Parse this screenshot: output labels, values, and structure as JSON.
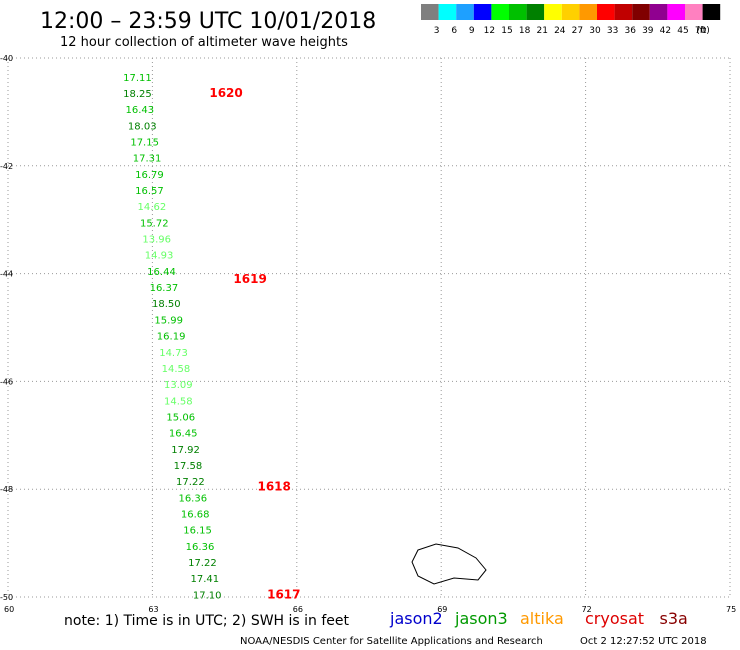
{
  "header": {
    "title": "12:00 – 23:59 UTC 10/01/2018",
    "subtitle": "12 hour collection of altimeter wave heights"
  },
  "legend": {
    "bins": [
      {
        "label": "3",
        "color": "#7f7f7f"
      },
      {
        "label": "6",
        "color": "#00ffff"
      },
      {
        "label": "9",
        "color": "#1ea0ff"
      },
      {
        "label": "12",
        "color": "#0000ff"
      },
      {
        "label": "15",
        "color": "#00ff00"
      },
      {
        "label": "18",
        "color": "#00c000"
      },
      {
        "label": "21",
        "color": "#008000"
      },
      {
        "label": "24",
        "color": "#ffff00"
      },
      {
        "label": "27",
        "color": "#ffd000"
      },
      {
        "label": "30",
        "color": "#ff9900"
      },
      {
        "label": "33",
        "color": "#ff0000"
      },
      {
        "label": "36",
        "color": "#c00000"
      },
      {
        "label": "39",
        "color": "#800000"
      },
      {
        "label": "42",
        "color": "#900090"
      },
      {
        "label": "45",
        "color": "#ff00ff"
      },
      {
        "label": "70",
        "color": "#ff80c0"
      },
      {
        "label": "",
        "color": "#000000"
      }
    ],
    "unit": "(ft)"
  },
  "footer": {
    "note": "note: 1) Time is in UTC; 2) SWH is in feet",
    "satellites": [
      {
        "name": "jason2",
        "color": "#0000cc"
      },
      {
        "name": "jason3",
        "color": "#009900"
      },
      {
        "name": "altika",
        "color": "#ff9900"
      },
      {
        "name": "cryosat",
        "color": "#dd0000"
      },
      {
        "name": "s3a",
        "color": "#880000"
      }
    ],
    "credit": "NOAA/NESDIS Center for Satellite Applications and Research",
    "timestamp": "Oct  2 12:27:52 UTC 2018"
  },
  "chart_data": {
    "type": "scatter",
    "x_ticks": [
      "60",
      "63",
      "66",
      "69",
      "72",
      "75"
    ],
    "y_ticks": [
      "-40",
      "-42",
      "-44",
      "-46",
      "-48",
      "-50"
    ],
    "xlim": [
      60,
      75
    ],
    "ylim": [
      -50,
      -40
    ],
    "tracks": [
      {
        "name": "pass 1617-1620",
        "times": [
          {
            "lat": -40.65,
            "lon": 64.1,
            "label": "1620",
            "color": "#ff0000"
          },
          {
            "lat": -44.1,
            "lon": 64.6,
            "label": "1619",
            "color": "#ff0000"
          },
          {
            "lat": -47.95,
            "lon": 65.1,
            "label": "1618",
            "color": "#ff0000"
          },
          {
            "lat": -49.95,
            "lon": 65.3,
            "label": "1617",
            "color": "#ff0000"
          }
        ],
        "points": [
          {
            "lat": -40.35,
            "lon": 62.35,
            "v": "17.11",
            "c": "#00c000"
          },
          {
            "lat": -40.65,
            "lon": 62.35,
            "v": "18.25",
            "c": "#008000"
          },
          {
            "lat": -40.95,
            "lon": 62.4,
            "v": "16.43",
            "c": "#00c000"
          },
          {
            "lat": -41.25,
            "lon": 62.45,
            "v": "18.03",
            "c": "#008000"
          },
          {
            "lat": -41.55,
            "lon": 62.5,
            "v": "17.15",
            "c": "#00c000"
          },
          {
            "lat": -41.85,
            "lon": 62.55,
            "v": "17.31",
            "c": "#00c000"
          },
          {
            "lat": -42.15,
            "lon": 62.6,
            "v": "16.79",
            "c": "#00c000"
          },
          {
            "lat": -42.45,
            "lon": 62.6,
            "v": "16.57",
            "c": "#00c000"
          },
          {
            "lat": -42.75,
            "lon": 62.65,
            "v": "14.62",
            "c": "#66ff66"
          },
          {
            "lat": -43.05,
            "lon": 62.7,
            "v": "15.72",
            "c": "#00c000"
          },
          {
            "lat": -43.35,
            "lon": 62.75,
            "v": "13.96",
            "c": "#66ff66"
          },
          {
            "lat": -43.65,
            "lon": 62.8,
            "v": "14.93",
            "c": "#66ff66"
          },
          {
            "lat": -43.95,
            "lon": 62.85,
            "v": "16.44",
            "c": "#00c000"
          },
          {
            "lat": -44.25,
            "lon": 62.9,
            "v": "16.37",
            "c": "#00c000"
          },
          {
            "lat": -44.55,
            "lon": 62.95,
            "v": "18.50",
            "c": "#008000"
          },
          {
            "lat": -44.85,
            "lon": 63.0,
            "v": "15.99",
            "c": "#00c000"
          },
          {
            "lat": -45.15,
            "lon": 63.05,
            "v": "16.19",
            "c": "#00c000"
          },
          {
            "lat": -45.45,
            "lon": 63.1,
            "v": "14.73",
            "c": "#66ff66"
          },
          {
            "lat": -45.75,
            "lon": 63.15,
            "v": "14.58",
            "c": "#66ff66"
          },
          {
            "lat": -46.05,
            "lon": 63.2,
            "v": "13.09",
            "c": "#66ff66"
          },
          {
            "lat": -46.35,
            "lon": 63.2,
            "v": "14.58",
            "c": "#66ff66"
          },
          {
            "lat": -46.65,
            "lon": 63.25,
            "v": "15.06",
            "c": "#00c000"
          },
          {
            "lat": -46.95,
            "lon": 63.3,
            "v": "16.45",
            "c": "#00c000"
          },
          {
            "lat": -47.25,
            "lon": 63.35,
            "v": "17.92",
            "c": "#008000"
          },
          {
            "lat": -47.55,
            "lon": 63.4,
            "v": "17.58",
            "c": "#008000"
          },
          {
            "lat": -47.85,
            "lon": 63.45,
            "v": "17.22",
            "c": "#008000"
          },
          {
            "lat": -48.15,
            "lon": 63.5,
            "v": "16.36",
            "c": "#00c000"
          },
          {
            "lat": -48.45,
            "lon": 63.55,
            "v": "16.68",
            "c": "#00c000"
          },
          {
            "lat": -48.75,
            "lon": 63.6,
            "v": "16.15",
            "c": "#00c000"
          },
          {
            "lat": -49.05,
            "lon": 63.65,
            "v": "16.36",
            "c": "#00c000"
          },
          {
            "lat": -49.35,
            "lon": 63.7,
            "v": "17.22",
            "c": "#008000"
          },
          {
            "lat": -49.65,
            "lon": 63.75,
            "v": "17.41",
            "c": "#008000"
          },
          {
            "lat": -49.95,
            "lon": 63.8,
            "v": "17.10",
            "c": "#008000"
          }
        ]
      }
    ]
  }
}
